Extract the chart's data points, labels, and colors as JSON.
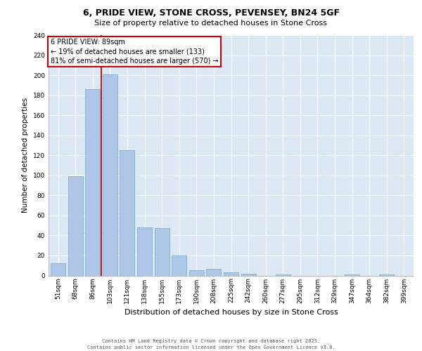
{
  "title_line1": "6, PRIDE VIEW, STONE CROSS, PEVENSEY, BN24 5GF",
  "title_line2": "Size of property relative to detached houses in Stone Cross",
  "xlabel": "Distribution of detached houses by size in Stone Cross",
  "ylabel": "Number of detached properties",
  "categories": [
    "51sqm",
    "68sqm",
    "86sqm",
    "103sqm",
    "121sqm",
    "138sqm",
    "155sqm",
    "173sqm",
    "190sqm",
    "208sqm",
    "225sqm",
    "242sqm",
    "260sqm",
    "277sqm",
    "295sqm",
    "312sqm",
    "329sqm",
    "347sqm",
    "364sqm",
    "382sqm",
    "399sqm"
  ],
  "values": [
    12,
    99,
    186,
    201,
    125,
    48,
    47,
    20,
    5,
    7,
    3,
    2,
    0,
    1,
    0,
    0,
    0,
    1,
    0,
    1,
    0
  ],
  "bar_color": "#aec6e8",
  "bar_edge_color": "#7aafd4",
  "background_color": "#dce9f5",
  "grid_color": "#ffffff",
  "property_label": "6 PRIDE VIEW: 89sqm",
  "annotation_line1": "← 19% of detached houses are smaller (133)",
  "annotation_line2": "81% of semi-detached houses are larger (570) →",
  "vline_position": 2.5,
  "vline_color": "#cc0000",
  "annotation_box_color": "#cc0000",
  "ylim": [
    0,
    240
  ],
  "yticks": [
    0,
    20,
    40,
    60,
    80,
    100,
    120,
    140,
    160,
    180,
    200,
    220,
    240
  ],
  "footer_line1": "Contains HM Land Registry data © Crown copyright and database right 2025.",
  "footer_line2": "Contains public sector information licensed under the Open Government Licence v3.0.",
  "title1_fontsize": 9,
  "title2_fontsize": 8,
  "ylabel_fontsize": 7.5,
  "xlabel_fontsize": 8,
  "tick_fontsize": 6.5,
  "annot_fontsize": 7,
  "footer_fontsize": 5
}
